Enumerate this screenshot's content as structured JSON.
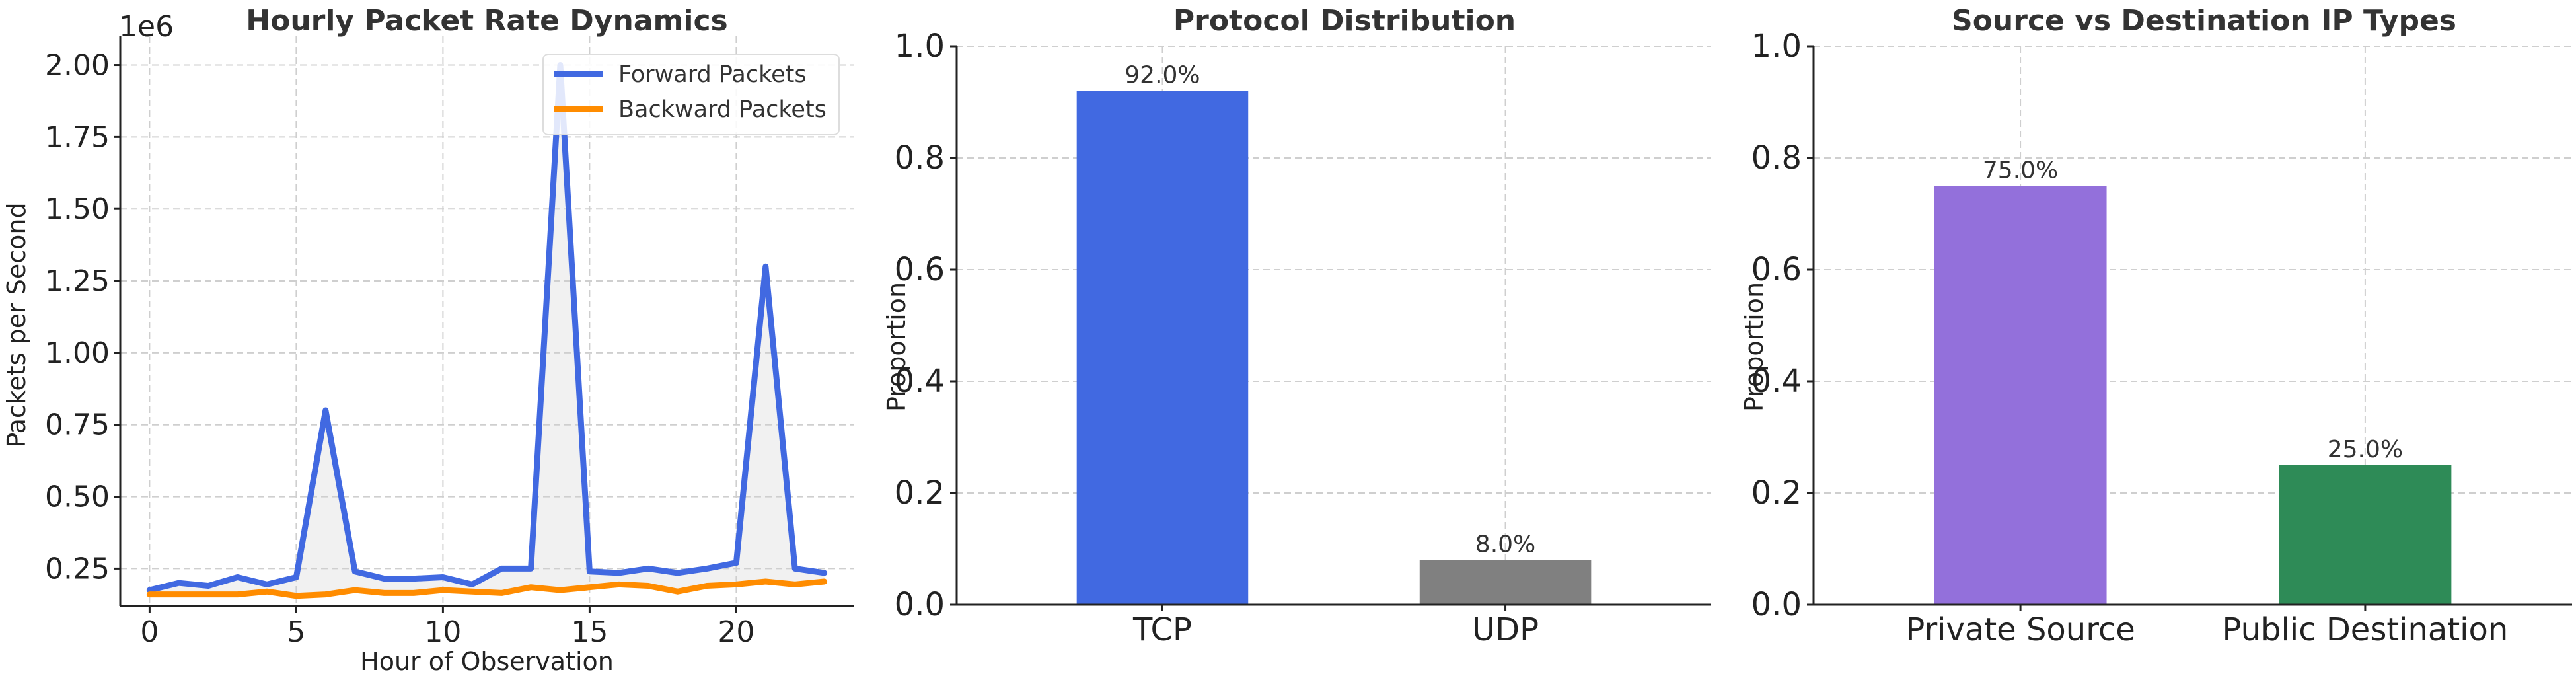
{
  "chart_data": [
    {
      "type": "line",
      "title": "Hourly Packet Rate Dynamics",
      "xlabel": "Hour of Observation",
      "ylabel": "Packets per Second",
      "y_offset_label": "1e6",
      "xlim": [
        -1,
        24
      ],
      "ylim": [
        0.12,
        2.1
      ],
      "xticks": [
        0,
        5,
        10,
        15,
        20
      ],
      "xtick_labels": [
        "0",
        "5",
        "10",
        "15",
        "20"
      ],
      "yticks": [
        0.25,
        0.5,
        0.75,
        1.0,
        1.25,
        1.5,
        1.75,
        2.0
      ],
      "ytick_labels": [
        "0.25",
        "0.50",
        "0.75",
        "1.00",
        "1.25",
        "1.50",
        "1.75",
        "2.00"
      ],
      "grid": true,
      "legend_position": "top-right",
      "fill_between": true,
      "x": [
        0,
        1,
        2,
        3,
        4,
        5,
        6,
        7,
        8,
        9,
        10,
        11,
        12,
        13,
        14,
        15,
        16,
        17,
        18,
        19,
        20,
        21,
        22,
        23
      ],
      "series": [
        {
          "name": "Forward Packets",
          "color": "#4169E1",
          "values": [
            0.175,
            0.2,
            0.19,
            0.22,
            0.195,
            0.22,
            0.8,
            0.24,
            0.215,
            0.215,
            0.22,
            0.195,
            0.25,
            0.25,
            2.0,
            0.24,
            0.235,
            0.25,
            0.235,
            0.25,
            0.27,
            1.3,
            0.25,
            0.235
          ]
        },
        {
          "name": "Backward Packets",
          "color": "#FF8C00",
          "values": [
            0.16,
            0.16,
            0.16,
            0.16,
            0.17,
            0.155,
            0.16,
            0.175,
            0.165,
            0.165,
            0.175,
            0.17,
            0.165,
            0.185,
            0.175,
            0.185,
            0.195,
            0.19,
            0.17,
            0.19,
            0.195,
            0.205,
            0.195,
            0.205
          ]
        }
      ]
    },
    {
      "type": "bar",
      "title": "Protocol Distribution",
      "xlabel": "",
      "ylabel": "Proportion",
      "categories": [
        "TCP",
        "UDP"
      ],
      "values": [
        0.92,
        0.08
      ],
      "data_labels": [
        "92.0%",
        "8.0%"
      ],
      "colors": [
        "#4169E1",
        "#808080"
      ],
      "ylim": [
        0,
        1.0
      ],
      "yticks": [
        0.0,
        0.2,
        0.4,
        0.6,
        0.8,
        1.0
      ],
      "ytick_labels": [
        "0.0",
        "0.2",
        "0.4",
        "0.6",
        "0.8",
        "1.0"
      ],
      "grid": true
    },
    {
      "type": "bar",
      "title": "Source vs Destination IP Types",
      "xlabel": "",
      "ylabel": "Proportion",
      "categories": [
        "Private Source",
        "Public Destination"
      ],
      "values": [
        0.75,
        0.25
      ],
      "data_labels": [
        "75.0%",
        "25.0%"
      ],
      "colors": [
        "#9370DB",
        "#2E8B57"
      ],
      "ylim": [
        0,
        1.0
      ],
      "yticks": [
        0.0,
        0.2,
        0.4,
        0.6,
        0.8,
        1.0
      ],
      "ytick_labels": [
        "0.0",
        "0.2",
        "0.4",
        "0.6",
        "0.8",
        "1.0"
      ],
      "grid": true
    }
  ]
}
